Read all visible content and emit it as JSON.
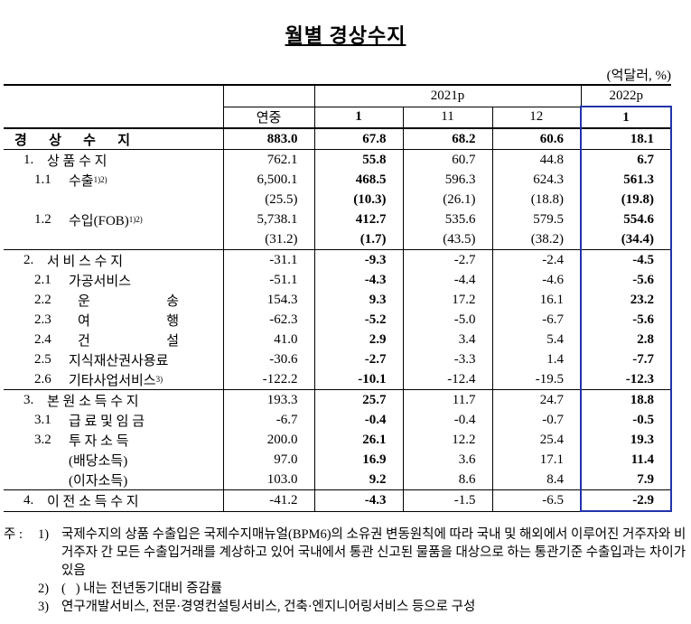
{
  "title": "월별 경상수지",
  "unit": "(억달러, %)",
  "header": {
    "year1": "2021p",
    "year2": "2022p",
    "cols": [
      "연중",
      "1",
      "11",
      "12",
      "1"
    ]
  },
  "groups": [
    {
      "rows": [
        {
          "num": "",
          "name": "경 상 수 지",
          "bold": true,
          "values": [
            "883.0",
            "67.8",
            "68.2",
            "60.6",
            "18.1"
          ]
        }
      ]
    },
    {
      "rows": [
        {
          "num": "1.",
          "name": "상 품 수 지",
          "values": [
            "762.1",
            "55.8",
            "60.7",
            "44.8",
            "6.7"
          ]
        },
        {
          "num": "1.1",
          "name": "수출",
          "sup": "1)2)",
          "values": [
            "6,500.1",
            "468.5",
            "596.3",
            "624.3",
            "561.3"
          ]
        },
        {
          "num": "",
          "name": "",
          "values": [
            "(25.5)",
            "(10.3)",
            "(26.1)",
            "(18.8)",
            "(19.8)"
          ]
        },
        {
          "num": "1.2",
          "name": "수입(FOB)",
          "sup": "1)2)",
          "values": [
            "5,738.1",
            "412.7",
            "535.6",
            "579.5",
            "554.6"
          ]
        },
        {
          "num": "",
          "name": "",
          "values": [
            "(31.2)",
            "(1.7)",
            "(43.5)",
            "(38.2)",
            "(34.4)"
          ]
        }
      ]
    },
    {
      "rows": [
        {
          "num": "2.",
          "name": "서 비 스 수 지",
          "values": [
            "-31.1",
            "-9.3",
            "-2.7",
            "-2.4",
            "-4.5"
          ]
        },
        {
          "num": "2.1",
          "name": "가공서비스",
          "values": [
            "-51.1",
            "-4.3",
            "-4.4",
            "-4.6",
            "-5.6"
          ]
        },
        {
          "num": "2.2",
          "name": "운 송",
          "justify": true,
          "values": [
            "154.3",
            "9.3",
            "17.2",
            "16.1",
            "23.2"
          ]
        },
        {
          "num": "2.3",
          "name": "여 행",
          "justify": true,
          "values": [
            "-62.3",
            "-5.2",
            "-5.0",
            "-6.7",
            "-5.6"
          ]
        },
        {
          "num": "2.4",
          "name": "건 설",
          "justify": true,
          "values": [
            "41.0",
            "2.9",
            "3.4",
            "5.4",
            "2.8"
          ]
        },
        {
          "num": "2.5",
          "name": "지식재산권사용료",
          "values": [
            "-30.6",
            "-2.7",
            "-3.3",
            "1.4",
            "-7.7"
          ]
        },
        {
          "num": "2.6",
          "name": "기타사업서비스",
          "sup": "3)",
          "values": [
            "-122.2",
            "-10.1",
            "-12.4",
            "-19.5",
            "-12.3"
          ]
        }
      ]
    },
    {
      "rows": [
        {
          "num": "3.",
          "name": "본 원 소 득 수 지",
          "values": [
            "193.3",
            "25.7",
            "11.7",
            "24.7",
            "18.8"
          ]
        },
        {
          "num": "3.1",
          "name": "급 료 및 임 금",
          "values": [
            "-6.7",
            "-0.4",
            "-0.4",
            "-0.7",
            "-0.5"
          ]
        },
        {
          "num": "3.2",
          "name": "투 자 소 득",
          "values": [
            "200.0",
            "26.1",
            "12.2",
            "25.4",
            "19.3"
          ]
        },
        {
          "num": "",
          "name": "(배당소득)",
          "values": [
            "97.0",
            "16.9",
            "3.6",
            "17.1",
            "11.4"
          ]
        },
        {
          "num": "",
          "name": "(이자소득)",
          "values": [
            "103.0",
            "9.2",
            "8.6",
            "8.4",
            "7.9"
          ]
        }
      ]
    },
    {
      "rows": [
        {
          "num": "4.",
          "name": "이 전 소 득 수 지",
          "values": [
            "-41.2",
            "-4.3",
            "-1.5",
            "-6.5",
            "-2.9"
          ]
        }
      ]
    }
  ],
  "notes_prefix": "주 :",
  "notes": [
    {
      "marker": "1)",
      "text": "국제수지의 상품 수출입은 국제수지매뉴얼(BPM6)의 소유권 변동원칙에 따라 국내 및 해외에서 이루어진 거주자와 비거주자 간 모든 수출입거래를 계상하고 있어 국내에서 통관 신고된 물품을 대상으로 하는 통관기준 수출입과는 차이가 있음"
    },
    {
      "marker": "2)",
      "text": "(   ) 내는 전년동기대비 증감률"
    },
    {
      "marker": "3)",
      "text": "연구개발서비스, 전문·경영컨설팅서비스, 건축·엔지니어링서비스 등으로 구성"
    }
  ]
}
